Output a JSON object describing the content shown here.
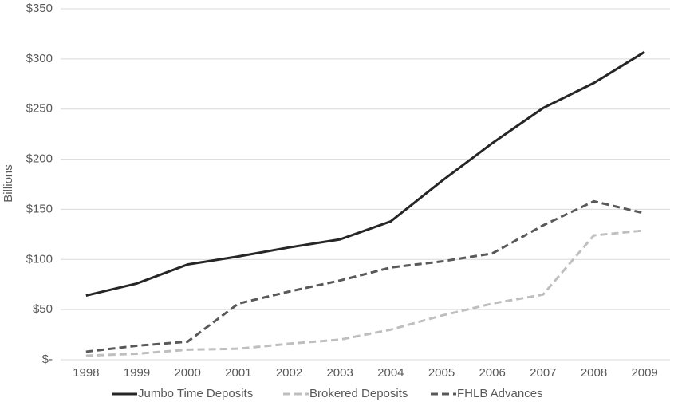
{
  "chart_data": {
    "type": "line",
    "y_label": "Billions",
    "categories": [
      "1998",
      "1999",
      "2000",
      "2001",
      "2002",
      "2003",
      "2004",
      "2005",
      "2006",
      "2007",
      "2008",
      "2009"
    ],
    "series": [
      {
        "name": "Jumbo Time Deposits",
        "color": "#262626",
        "line_style": "solid",
        "values": [
          64,
          76,
          95,
          103,
          112,
          120,
          138,
          178,
          216,
          251,
          276,
          307
        ]
      },
      {
        "name": "Brokered Deposits",
        "color": "#bfbfbf",
        "line_style": "dashed",
        "values": [
          4,
          6,
          10,
          11,
          16,
          20,
          30,
          44,
          56,
          65,
          124,
          129
        ]
      },
      {
        "name": "FHLB Advances",
        "color": "#595959",
        "line_style": "dashed",
        "values": [
          8,
          14,
          18,
          56,
          68,
          79,
          92,
          98,
          106,
          134,
          158,
          146
        ]
      }
    ],
    "ylim": [
      0,
      350
    ],
    "yticks": [
      {
        "value": 0,
        "label": "$-"
      },
      {
        "value": 50,
        "label": "$50"
      },
      {
        "value": 100,
        "label": "$100"
      },
      {
        "value": 150,
        "label": "$150"
      },
      {
        "value": 200,
        "label": "$200"
      },
      {
        "value": 250,
        "label": "$250"
      },
      {
        "value": 300,
        "label": "$300"
      },
      {
        "value": 350,
        "label": "$350"
      }
    ],
    "grid": true,
    "legend": "bottom"
  }
}
